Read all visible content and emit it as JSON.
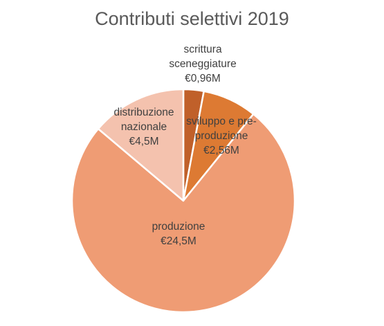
{
  "chart_data": {
    "type": "pie",
    "title": "Contributi selettivi 2019",
    "slices": [
      {
        "label": [
          "scrittura",
          "sceneggiature",
          "€0,96M"
        ],
        "value": 0.96,
        "color": "#c0602a"
      },
      {
        "label": [
          "sviluppo e pre-",
          "produzione",
          "€2,56M"
        ],
        "value": 2.56,
        "color": "#dd7a33"
      },
      {
        "label": [
          "produzione",
          "€24,5M"
        ],
        "value": 24.5,
        "color": "#ef9c74"
      },
      {
        "label": [
          "distribuzione",
          "nazionale",
          "€4,5M"
        ],
        "value": 4.5,
        "color": "#f4c2ae"
      }
    ],
    "legend": "none"
  }
}
